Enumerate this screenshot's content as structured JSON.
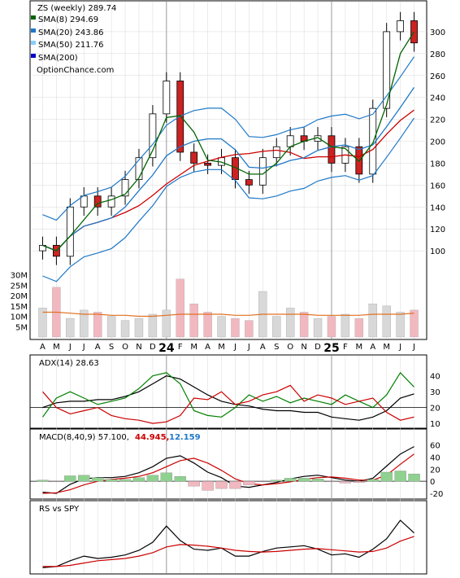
{
  "chart_data": [
    {
      "type": "candlestick",
      "panel": "price",
      "title": "ZS (weekly) 289.74",
      "watermark": "OptionChance.com",
      "legend": [
        {
          "label": "SMA(8) 294.69",
          "color": "#006400"
        },
        {
          "label": "SMA(20) 243.86",
          "color": "#1e78c8"
        },
        {
          "label": "SMA(50) 211.76",
          "color": "#87cefa"
        },
        {
          "label": "SMA(200)",
          "color": "#0000cc"
        }
      ],
      "ylim": [
        80,
        320
      ],
      "yticks": [
        100,
        120,
        140,
        160,
        180,
        200,
        220,
        240,
        260,
        280,
        300
      ],
      "x_labels": [
        "A",
        "M",
        "J",
        "J",
        "A",
        "S",
        "O",
        "N",
        "D",
        "24",
        "F",
        "M",
        "A",
        "M",
        "J",
        "J",
        "A",
        "S",
        "O",
        "N",
        "D",
        "25",
        "F",
        "M",
        "A",
        "M",
        "J",
        "J"
      ],
      "close_approx": [
        105,
        95,
        140,
        150,
        140,
        150,
        165,
        185,
        225,
        255,
        190,
        180,
        178,
        185,
        165,
        160,
        185,
        195,
        205,
        200,
        205,
        180,
        195,
        170,
        230,
        300,
        310,
        289.74
      ],
      "bands": {
        "upper_color": "#1e78c8",
        "lower_color": "#1e78c8",
        "bollinger_alt_color": "#e6e600"
      },
      "sma_colors": {
        "sma8": "#006400",
        "sma20": "#1e78c8",
        "sma50_line": "#cc0000"
      }
    },
    {
      "type": "bar",
      "panel": "volume",
      "yticks": [
        "30M",
        "25M",
        "20M",
        "15M",
        "10M",
        "5M"
      ],
      "ylim": [
        0,
        33
      ],
      "avg_color": "#e07020",
      "volume_approx": [
        14,
        24,
        9,
        13,
        12,
        10,
        8,
        9,
        11,
        13,
        28,
        16,
        12,
        10,
        9,
        8,
        22,
        10,
        14,
        12,
        9,
        10,
        11,
        9,
        16,
        15,
        12,
        13
      ],
      "avg_approx": [
        12,
        12,
        11.5,
        11,
        11,
        10.5,
        10.5,
        10,
        10,
        10.5,
        11,
        11,
        11,
        11,
        10.5,
        10.5,
        11,
        11,
        11,
        11,
        10.5,
        10.5,
        10.5,
        10.5,
        11,
        11,
        11,
        11.5
      ]
    },
    {
      "type": "line",
      "panel": "adx",
      "label": "ADX(14) 28.63",
      "ylim": [
        8,
        45
      ],
      "yticks": [
        10,
        20,
        30,
        40
      ],
      "series": [
        {
          "name": "ADX",
          "color": "#000000",
          "values": [
            20,
            23,
            24,
            24,
            25,
            25,
            27,
            30,
            35,
            40,
            38,
            33,
            28,
            24,
            22,
            21,
            19,
            18,
            18,
            17,
            17,
            14,
            13,
            12,
            14,
            18,
            26,
            28.63
          ]
        },
        {
          "name": "+DI",
          "color": "#008000",
          "values": [
            14,
            26,
            30,
            26,
            22,
            24,
            26,
            32,
            40,
            42,
            35,
            18,
            15,
            14,
            20,
            28,
            24,
            27,
            23,
            26,
            24,
            22,
            28,
            24,
            20,
            28,
            42,
            33
          ]
        },
        {
          "name": "-DI",
          "color": "#cc0000",
          "values": [
            30,
            20,
            16,
            18,
            20,
            15,
            13,
            12,
            10,
            11,
            15,
            26,
            25,
            30,
            22,
            24,
            28,
            30,
            34,
            24,
            28,
            26,
            22,
            24,
            26,
            17,
            12,
            14
          ]
        }
      ]
    },
    {
      "type": "line",
      "panel": "macd",
      "label": "MACD(8,40,9) 57.100,",
      "label_2": "44.945,",
      "label_2_color": "#cc0000",
      "label_3": "12.159",
      "label_3_color": "#1e78c8",
      "ylim": [
        -28,
        62
      ],
      "yticks": [
        -20,
        0,
        20,
        40,
        60
      ],
      "series": [
        {
          "name": "MACD",
          "color": "#000000",
          "values": [
            -18,
            -20,
            -5,
            4,
            6,
            6,
            8,
            14,
            24,
            38,
            42,
            30,
            15,
            6,
            -8,
            -10,
            -6,
            -2,
            4,
            8,
            10,
            6,
            2,
            0,
            5,
            25,
            45,
            57.1
          ]
        },
        {
          "name": "Signal",
          "color": "#cc0000",
          "values": [
            -20,
            -19,
            -14,
            -6,
            0,
            3,
            5,
            8,
            14,
            24,
            34,
            38,
            30,
            18,
            4,
            -4,
            -6,
            -4,
            -1,
            3,
            6,
            7,
            5,
            2,
            2,
            10,
            28,
            44.945
          ]
        },
        {
          "name": "Histogram",
          "color": "#228b22",
          "values": [
            2,
            -1,
            9,
            10,
            6,
            3,
            3,
            6,
            10,
            14,
            8,
            -8,
            -15,
            -12,
            -12,
            -6,
            0,
            2,
            5,
            5,
            4,
            -1,
            -3,
            -2,
            3,
            15,
            17,
            12.159
          ]
        }
      ]
    },
    {
      "type": "line",
      "panel": "rs",
      "label": "RS vs SPY",
      "ylim": [
        0,
        100
      ],
      "series": [
        {
          "name": "RS",
          "color": "#000000",
          "values": [
            8,
            10,
            20,
            28,
            24,
            26,
            30,
            38,
            52,
            80,
            55,
            40,
            38,
            42,
            28,
            28,
            36,
            42,
            44,
            46,
            40,
            30,
            32,
            26,
            40,
            58,
            90,
            68
          ]
        },
        {
          "name": "RS SMA",
          "color": "#cc0000",
          "values": [
            10,
            10,
            12,
            16,
            20,
            22,
            24,
            28,
            34,
            44,
            48,
            47,
            45,
            42,
            38,
            36,
            35,
            36,
            38,
            40,
            41,
            39,
            37,
            35,
            36,
            42,
            54,
            62
          ]
        }
      ]
    }
  ]
}
